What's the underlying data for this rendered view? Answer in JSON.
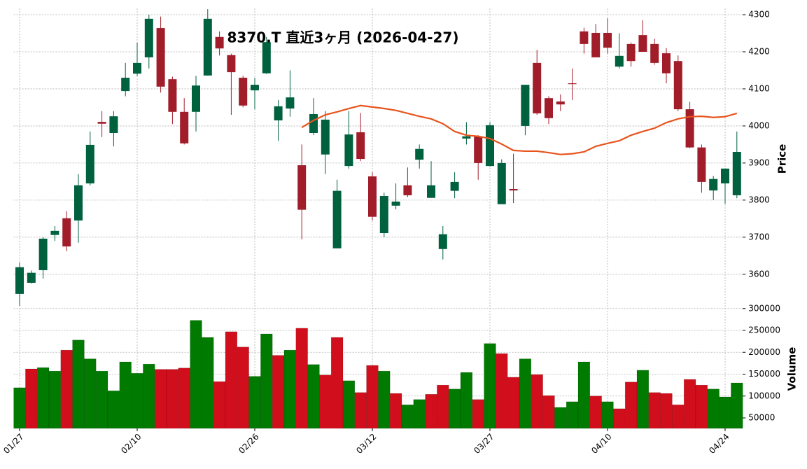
{
  "chart_data": [
    {
      "type": "candlestick",
      "title": "8370.T  直近3ヶ月 (2026-04-27)",
      "y_label": "Price",
      "categories": [
        "01/27",
        null,
        null,
        null,
        null,
        null,
        null,
        null,
        null,
        null,
        "02/10",
        null,
        null,
        null,
        null,
        null,
        null,
        null,
        null,
        null,
        "02/26",
        null,
        null,
        null,
        null,
        null,
        null,
        null,
        null,
        null,
        "03/12",
        null,
        null,
        null,
        null,
        null,
        null,
        null,
        null,
        null,
        "03/27",
        null,
        null,
        null,
        null,
        null,
        null,
        null,
        null,
        null,
        "04/10",
        null,
        null,
        null,
        null,
        null,
        null,
        null,
        null,
        null,
        "04/24",
        null
      ],
      "open": [
        3547,
        3577,
        3611,
        3706,
        3751,
        3745,
        3845,
        4011,
        3981,
        4094,
        4141,
        4185,
        4264,
        4126,
        4038,
        4038,
        4136,
        4240,
        4191,
        4130,
        4096,
        4142,
        4015,
        4047,
        3894,
        3981,
        3923,
        3670,
        3892,
        3983,
        3864,
        3711,
        3785,
        3840,
        3909,
        3806,
        3668,
        3825,
        3966,
        3972,
        3892,
        3789,
        3830,
        4000,
        4170,
        4075,
        4066,
        4115,
        4255,
        4251,
        4251,
        4160,
        4221,
        4245,
        4221,
        4196,
        4175,
        4045,
        3942,
        3826,
        3845,
        3813
      ],
      "high": [
        3632,
        3610,
        3700,
        3730,
        3770,
        3870,
        3985,
        4040,
        4040,
        4170,
        4225,
        4300,
        4295,
        4133,
        4075,
        4135,
        4315,
        4255,
        4195,
        4135,
        4130,
        4240,
        4070,
        4150,
        3950,
        4075,
        4040,
        3855,
        4040,
        4035,
        3875,
        3820,
        3845,
        3888,
        3950,
        3905,
        3730,
        3875,
        4010,
        3975,
        4010,
        3910,
        3925,
        4111,
        4205,
        4080,
        4085,
        4155,
        4265,
        4275,
        4290,
        4250,
        4225,
        4285,
        4235,
        4210,
        4190,
        4065,
        3950,
        3865,
        3885,
        3985
      ],
      "low": [
        3515,
        3575,
        3588,
        3690,
        3662,
        3685,
        3840,
        3970,
        3945,
        4080,
        4135,
        4155,
        4090,
        4005,
        3950,
        3985,
        4136,
        4190,
        4030,
        4050,
        4045,
        4140,
        3960,
        4025,
        3694,
        3975,
        3870,
        3670,
        3885,
        3905,
        3745,
        3700,
        3775,
        3808,
        3885,
        3806,
        3640,
        3805,
        3950,
        3855,
        3890,
        3789,
        3792,
        3975,
        4030,
        4005,
        4040,
        4070,
        4195,
        4185,
        4195,
        4155,
        4160,
        4200,
        4165,
        4115,
        4040,
        3940,
        3820,
        3800,
        3790,
        3805
      ],
      "close": [
        3619,
        3604,
        3696,
        3717,
        3675,
        3840,
        3949,
        4006,
        4026,
        4130,
        4170,
        4289,
        4106,
        4038,
        3953,
        4109,
        4289,
        4209,
        4145,
        4055,
        4111,
        4226,
        4053,
        4077,
        3774,
        4032,
        4017,
        3825,
        3977,
        3911,
        3755,
        3811,
        3796,
        3813,
        3938,
        3840,
        3708,
        3849,
        3972,
        3900,
        4002,
        3900,
        3826,
        4111,
        4034,
        4021,
        4058,
        4113,
        4221,
        4185,
        4211,
        4189,
        4175,
        4200,
        4170,
        4142,
        4045,
        3942,
        3849,
        3857,
        3885,
        3930
      ],
      "up_color": "#00613f",
      "down_color": "#a11d2a",
      "ma": {
        "color": "#e8541c",
        "values": [
          null,
          null,
          null,
          null,
          null,
          null,
          null,
          null,
          null,
          null,
          null,
          null,
          null,
          null,
          null,
          null,
          null,
          null,
          null,
          null,
          null,
          null,
          null,
          null,
          3996,
          4015,
          4030,
          4038,
          4047,
          4055,
          4051,
          4047,
          4042,
          4034,
          4026,
          4019,
          4006,
          3985,
          3975,
          3972,
          3966,
          3951,
          3934,
          3932,
          3932,
          3928,
          3923,
          3925,
          3930,
          3945,
          3953,
          3960,
          3975,
          3985,
          3994,
          4009,
          4019,
          4025,
          4026,
          4023,
          4025,
          4034
        ]
      },
      "ylim": [
        3509,
        4317
      ],
      "yticks": [
        3600,
        3700,
        3800,
        3900,
        4000,
        4100,
        4200,
        4300
      ],
      "grid": true
    },
    {
      "type": "bar",
      "y_label": "Volume",
      "values": [
        119000,
        162000,
        165000,
        157000,
        205000,
        228000,
        185000,
        157000,
        112000,
        178000,
        152000,
        173000,
        161000,
        161000,
        164000,
        273000,
        234000,
        133000,
        247000,
        212000,
        145000,
        242000,
        193000,
        205000,
        255000,
        172000,
        148000,
        234000,
        135000,
        108000,
        170000,
        157000,
        106000,
        80000,
        92000,
        104000,
        125000,
        116000,
        154000,
        92000,
        220000,
        197000,
        143000,
        185000,
        149000,
        101000,
        74000,
        87000,
        178000,
        100000,
        87000,
        71000,
        132000,
        159000,
        108000,
        106000,
        80000,
        138000,
        125000,
        116000,
        98000,
        130000
      ],
      "up_color": "#007a00",
      "down_color": "#d10e1c",
      "ylim": [
        26000,
        306000
      ],
      "yticks": [
        50000,
        100000,
        150000,
        200000,
        250000,
        300000
      ],
      "grid": true
    }
  ]
}
